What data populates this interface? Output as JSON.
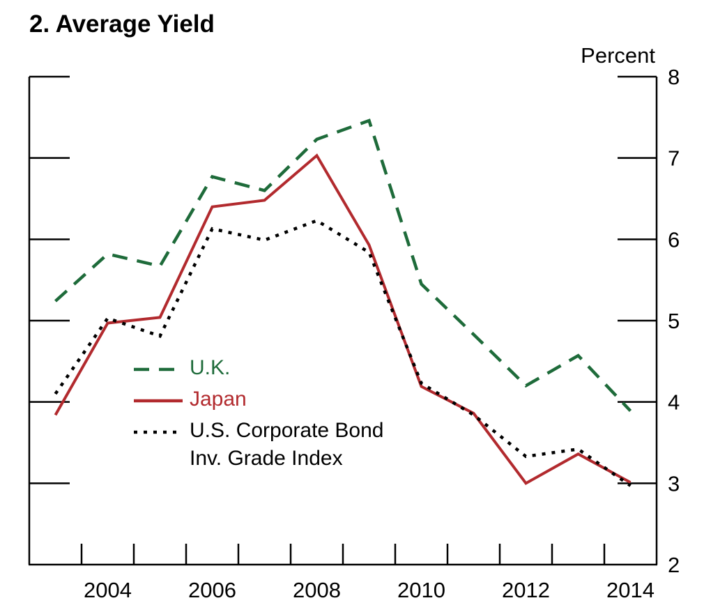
{
  "chart_data": {
    "type": "line",
    "title": "2. Average Yield",
    "ylabel": "Percent",
    "categories": [
      null,
      "2004",
      null,
      "2006",
      null,
      "2008",
      null,
      "2010",
      null,
      "2012",
      null,
      "2014"
    ],
    "series": [
      {
        "name": "U.K.",
        "color": "#1e6b3a",
        "style": "dashed",
        "values": [
          5.24,
          5.82,
          5.67,
          6.77,
          6.6,
          7.23,
          7.46,
          5.45,
          4.83,
          4.2,
          4.57,
          3.89
        ]
      },
      {
        "name": "Japan",
        "color": "#b22a2e",
        "style": "solid",
        "values": [
          3.84,
          4.97,
          5.04,
          6.4,
          6.48,
          7.03,
          5.93,
          4.19,
          3.86,
          3.0,
          3.36,
          3.01
        ]
      },
      {
        "name": "U.S. Corporate Bond\nInv. Grade Index",
        "color": "#000000",
        "style": "dotted",
        "values": [
          4.1,
          5.03,
          4.81,
          6.13,
          5.99,
          6.23,
          5.84,
          4.23,
          3.84,
          3.33,
          3.42,
          2.97
        ]
      }
    ],
    "ylim": [
      2,
      8
    ],
    "yticks": [
      2,
      3,
      4,
      5,
      6,
      7,
      8
    ],
    "grid": false
  }
}
